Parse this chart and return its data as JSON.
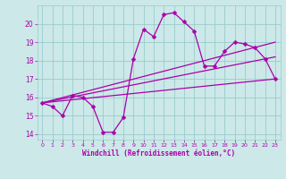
{
  "bg_color": "#cce8e8",
  "grid_color": "#99cccc",
  "line_color": "#aa00aa",
  "xlabel": "Windchill (Refroidissement éolien,°C)",
  "xlabel_color": "#aa00aa",
  "tick_color": "#aa00aa",
  "xlim": [
    -0.5,
    23.5
  ],
  "ylim": [
    13.7,
    21.0
  ],
  "xticks": [
    0,
    1,
    2,
    3,
    4,
    5,
    6,
    7,
    8,
    9,
    10,
    11,
    12,
    13,
    14,
    15,
    16,
    17,
    18,
    19,
    20,
    21,
    22,
    23
  ],
  "yticks": [
    14,
    15,
    16,
    17,
    18,
    19,
    20
  ],
  "line1_x": [
    0,
    1,
    2,
    3,
    4,
    5,
    6,
    7,
    8,
    9,
    10,
    11,
    12,
    13,
    14,
    15,
    16,
    17,
    18,
    19,
    20,
    21,
    22,
    23
  ],
  "line1_y": [
    15.7,
    15.5,
    15.0,
    16.1,
    16.0,
    15.5,
    14.1,
    14.1,
    14.9,
    18.1,
    19.7,
    19.3,
    20.5,
    20.6,
    20.1,
    19.6,
    17.7,
    17.7,
    18.5,
    19.0,
    18.9,
    18.7,
    18.1,
    17.0
  ],
  "line2_x": [
    0,
    23
  ],
  "line2_y": [
    15.7,
    17.0
  ],
  "line3_x": [
    0,
    23
  ],
  "line3_y": [
    15.7,
    19.0
  ],
  "line4_x": [
    0,
    23
  ],
  "line4_y": [
    15.7,
    18.2
  ]
}
